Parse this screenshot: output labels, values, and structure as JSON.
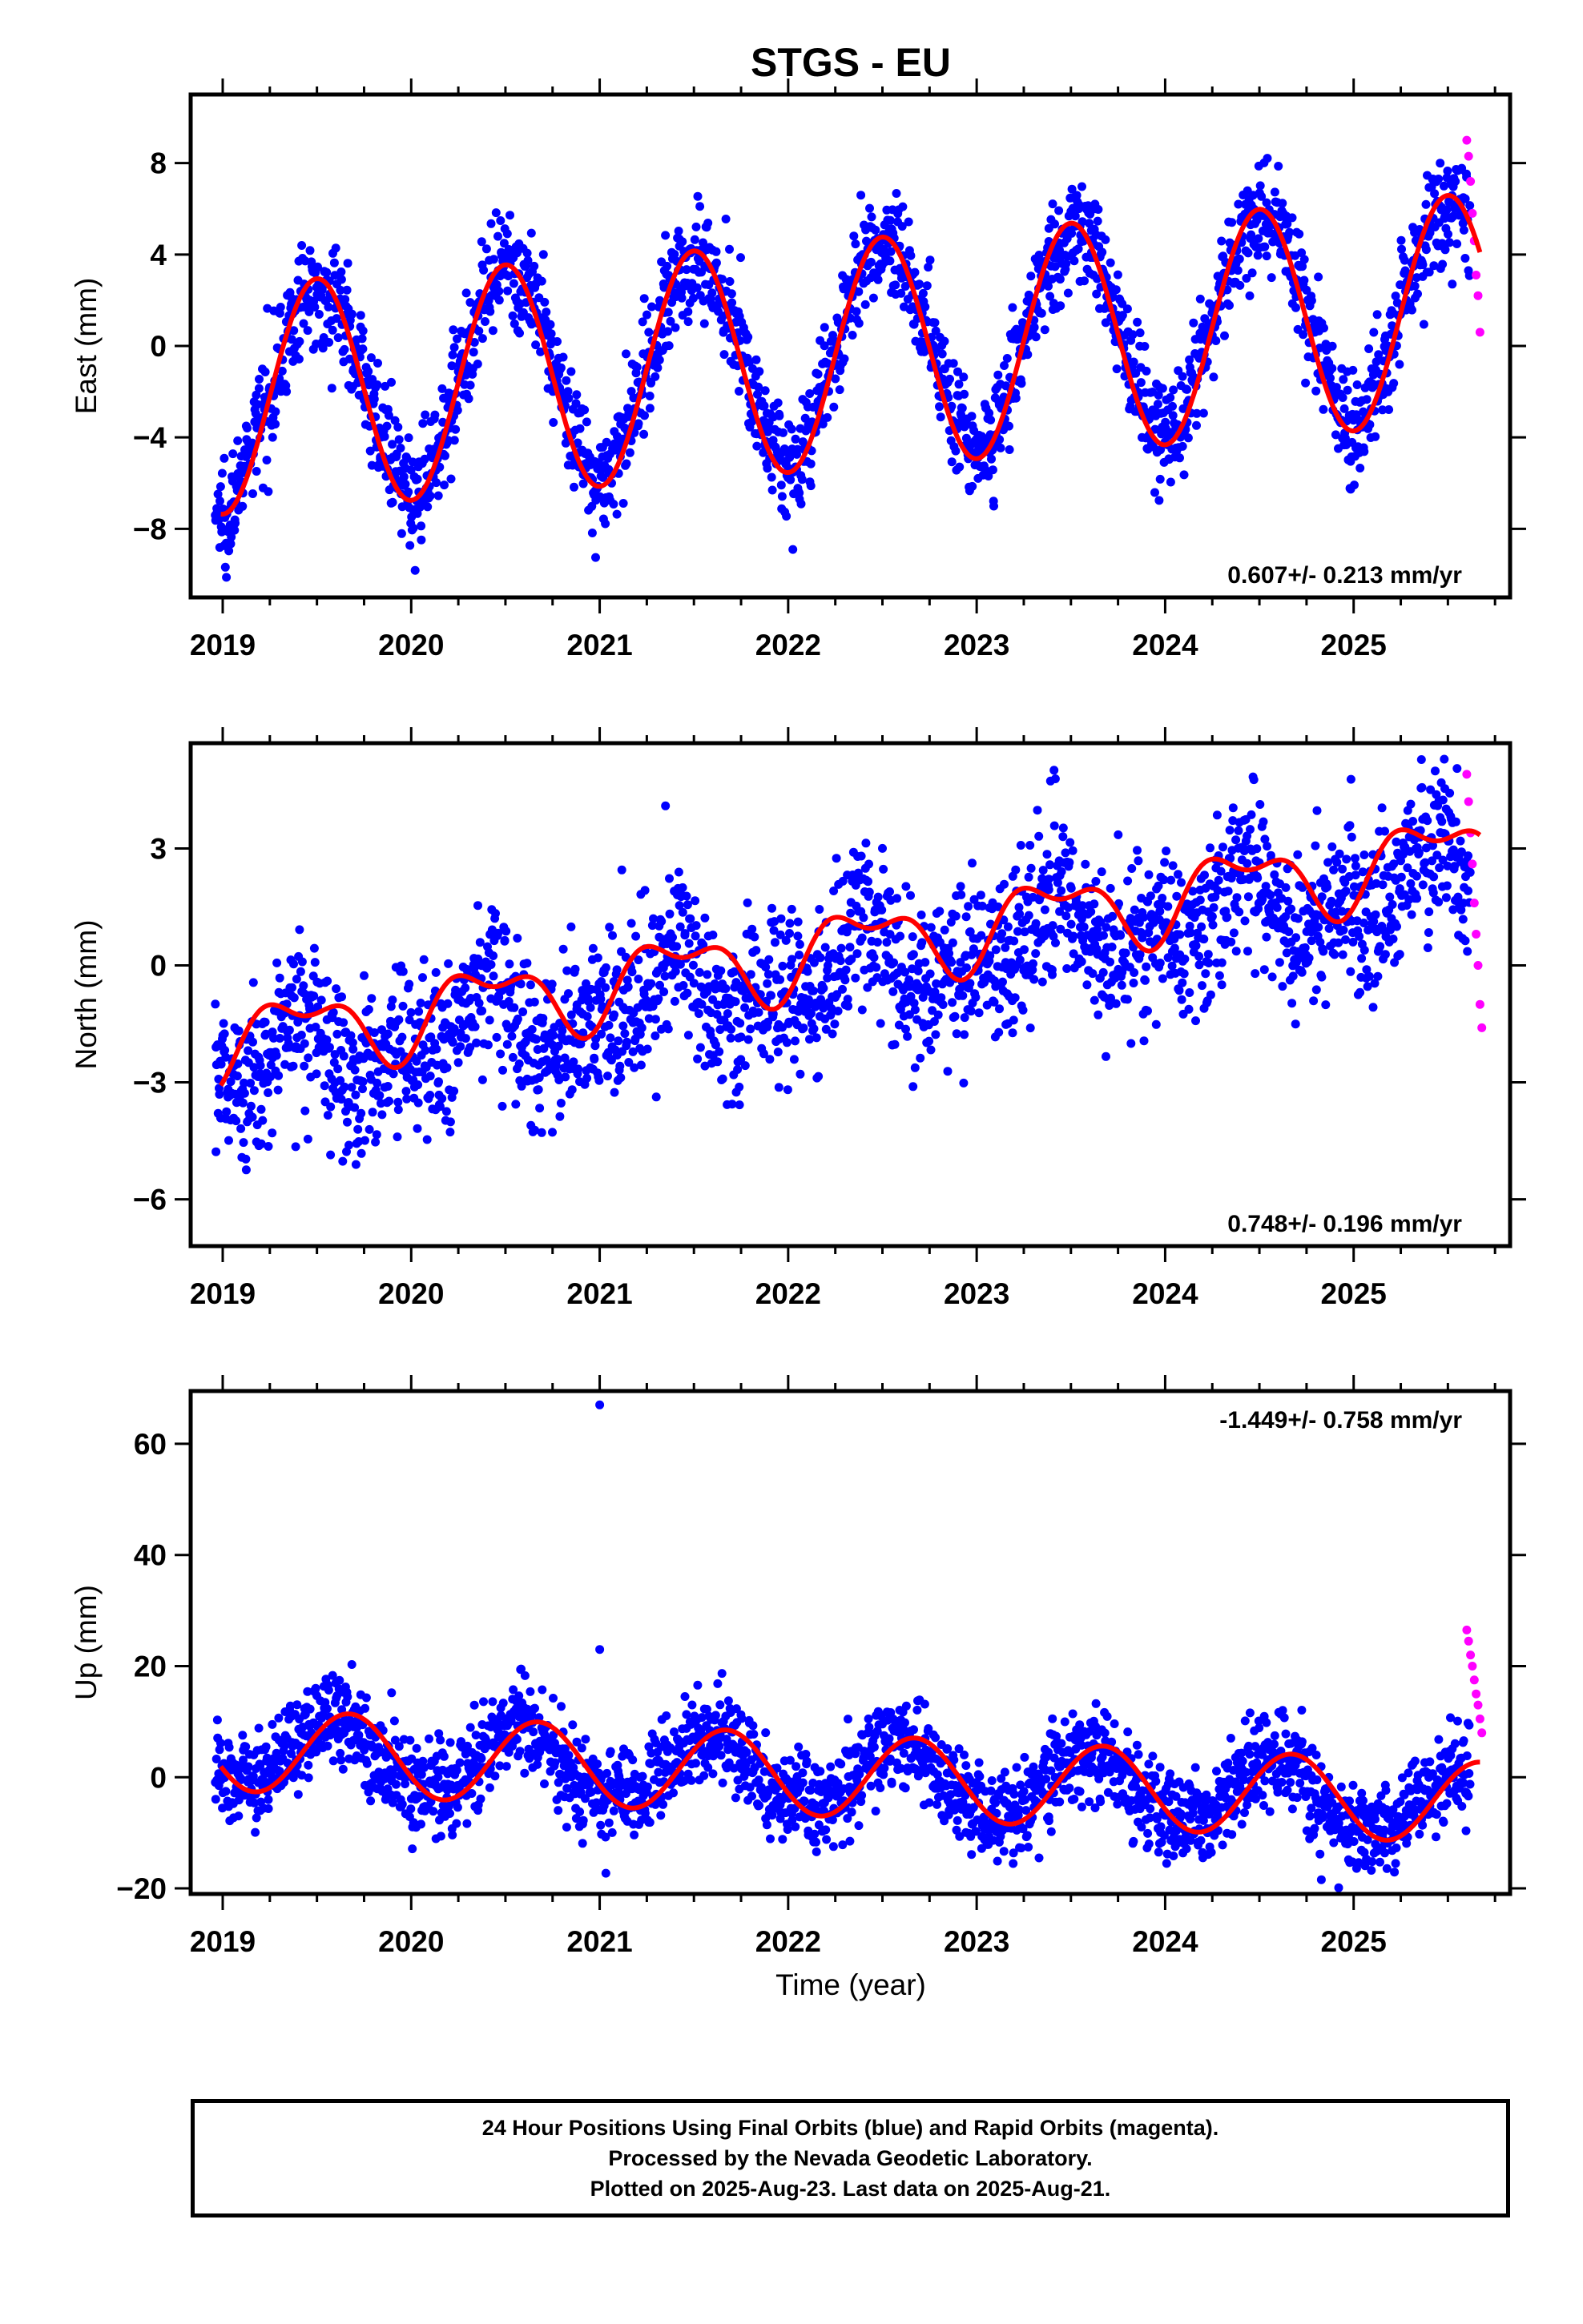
{
  "title": "STGS - EU",
  "colors": {
    "final": "#0000ff",
    "rapid": "#ff00ff",
    "model": "#ff0000",
    "frame": "#000000"
  },
  "caption": {
    "line1": "24 Hour Positions Using Final Orbits (blue) and Rapid Orbits (magenta).",
    "line2": "Processed by the Nevada Geodetic Laboratory.",
    "line3": "Plotted on 2025-Aug-23. Last data on 2025-Aug-21."
  },
  "chart_data": [
    {
      "type": "scatter",
      "title": "STGS - EU",
      "ylabel": "East (mm)",
      "xlabel": "",
      "xlim": [
        2018.83,
        2025.83
      ],
      "ylim": [
        -11,
        11
      ],
      "xticks": [
        2019,
        2020,
        2021,
        2022,
        2023,
        2024,
        2025
      ],
      "xtick_labels": [
        "2019",
        "2020",
        "2021",
        "2022",
        "2023",
        "2024",
        "2025"
      ],
      "yticks": [
        -8,
        -4,
        0,
        4,
        8
      ],
      "ytick_labels": [
        "−8",
        "−4",
        "0",
        "4",
        "8"
      ],
      "rate_text": "0.607+/- 0.213 mm/yr",
      "rate_position": "bottom-right",
      "grid": false,
      "model": {
        "rate": 0.607,
        "offset": -2.36,
        "t0": 2019,
        "annual_cos": -5.0,
        "annual_sin": 0.0,
        "semiannual_cos": 0,
        "semiannual_sin": 0
      },
      "series": [
        {
          "name": "Final Orbits",
          "color": "#0000ff",
          "noise": 1.2,
          "x": [
            2019.0,
            2019.1,
            2019.2,
            2019.3,
            2019.4,
            2019.5,
            2019.6,
            2019.7,
            2019.8,
            2019.9,
            2020.0,
            2020.1,
            2020.2,
            2020.3,
            2020.4,
            2020.5,
            2020.6,
            2020.7,
            2020.8,
            2020.9,
            2021.0,
            2021.1,
            2021.2,
            2021.3,
            2021.4,
            2021.5,
            2021.6,
            2021.7,
            2021.8,
            2021.9,
            2022.0,
            2022.1,
            2022.2,
            2022.3,
            2022.4,
            2022.5,
            2022.6,
            2022.7,
            2022.8,
            2022.9,
            2023.0,
            2023.1,
            2023.2,
            2023.3,
            2023.4,
            2023.5,
            2023.6,
            2023.7,
            2023.8,
            2023.9,
            2024.0,
            2024.1,
            2024.2,
            2024.3,
            2024.4,
            2024.5,
            2024.6,
            2024.7,
            2024.8,
            2024.9,
            2025.0,
            2025.1,
            2025.2,
            2025.3,
            2025.4,
            2025.5,
            2025.6
          ],
          "y": [
            -7.4,
            -5.9,
            -3.3,
            -0.6,
            1.6,
            2.6,
            2.1,
            0.1,
            -2.7,
            -5.3,
            -6.8,
            -5.4,
            -2.8,
            0.0,
            2.2,
            3.3,
            2.8,
            0.8,
            -2.0,
            -4.6,
            -6.1,
            -4.9,
            -2.3,
            0.6,
            2.8,
            3.9,
            3.4,
            1.4,
            -1.4,
            -4.0,
            -5.5,
            -4.3,
            -1.7,
            1.2,
            3.4,
            4.5,
            4.0,
            2.0,
            -0.8,
            -3.4,
            -4.8,
            -3.6,
            -1.0,
            1.8,
            4.0,
            5.1,
            4.6,
            2.6,
            -0.2,
            -2.8,
            -4.2,
            -3.0,
            -0.4,
            2.4,
            4.6,
            5.7,
            5.2,
            3.2,
            0.4,
            -2.2,
            -3.6,
            -2.4,
            0.2,
            3.0,
            5.2,
            6.3,
            5.8
          ]
        },
        {
          "name": "Rapid Orbits",
          "color": "#ff00ff",
          "x": [
            2025.6,
            2025.61,
            2025.62,
            2025.63,
            2025.64,
            2025.65,
            2025.66,
            2025.67
          ],
          "y": [
            9.0,
            8.3,
            7.2,
            5.8,
            4.6,
            3.1,
            2.2,
            0.6
          ]
        }
      ]
    },
    {
      "type": "scatter",
      "title": "",
      "ylabel": "North (mm)",
      "xlabel": "",
      "xlim": [
        2018.83,
        2025.83
      ],
      "ylim": [
        -7.2,
        5.7
      ],
      "xticks": [
        2019,
        2020,
        2021,
        2022,
        2023,
        2024,
        2025
      ],
      "xtick_labels": [
        "2019",
        "2020",
        "2021",
        "2022",
        "2023",
        "2024",
        "2025"
      ],
      "yticks": [
        -6,
        -3,
        0,
        3
      ],
      "ytick_labels": [
        "−6",
        "−3",
        "0",
        "3"
      ],
      "rate_text": "0.748+/- 0.196 mm/yr",
      "rate_position": "bottom-right",
      "grid": false,
      "model": {
        "rate": 0.748,
        "offset": -2.0,
        "t0": 2019,
        "annual_cos": -0.7,
        "annual_sin": 0.5,
        "semiannual_cos": -0.3,
        "semiannual_sin": 0.35
      },
      "series": [
        {
          "name": "Final Orbits",
          "color": "#0000ff",
          "noise": 1.05,
          "x": [
            2019.0,
            2019.1,
            2019.2,
            2019.3,
            2019.4,
            2019.5,
            2019.6,
            2019.7,
            2019.8,
            2019.9,
            2020.0,
            2020.1,
            2020.2,
            2020.3,
            2020.4,
            2020.5,
            2020.6,
            2020.7,
            2020.8,
            2020.9,
            2021.0,
            2021.1,
            2021.2,
            2021.3,
            2021.4,
            2021.5,
            2021.6,
            2021.7,
            2021.8,
            2021.9,
            2022.0,
            2022.1,
            2022.2,
            2022.3,
            2022.4,
            2022.5,
            2022.6,
            2022.7,
            2022.8,
            2022.9,
            2023.0,
            2023.1,
            2023.2,
            2023.3,
            2023.4,
            2023.5,
            2023.6,
            2023.7,
            2023.8,
            2023.9,
            2024.0,
            2024.1,
            2024.2,
            2024.3,
            2024.4,
            2024.5,
            2024.6,
            2024.7,
            2024.8,
            2024.9,
            2025.0,
            2025.1,
            2025.2,
            2025.3,
            2025.4,
            2025.5,
            2025.6
          ],
          "y": [
            -2.7,
            -3.0,
            -2.9,
            -1.8,
            -0.8,
            -1.2,
            -2.5,
            -3.0,
            -2.7,
            -2.2,
            -2.2,
            -2.4,
            -2.0,
            -1.0,
            -0.1,
            -0.5,
            -1.7,
            -2.3,
            -2.0,
            -1.4,
            -1.4,
            -1.6,
            -1.2,
            -0.3,
            0.7,
            0.3,
            -1.0,
            -1.5,
            -1.2,
            -0.6,
            -0.6,
            -0.9,
            -0.5,
            0.5,
            1.4,
            1.0,
            -0.2,
            -0.8,
            -0.5,
            0.1,
            0.1,
            -0.1,
            0.3,
            1.2,
            2.1,
            1.8,
            0.5,
            0.0,
            0.3,
            0.9,
            0.9,
            0.7,
            1.1,
            2.0,
            2.9,
            2.5,
            1.3,
            0.7,
            1.0,
            1.6,
            1.6,
            1.4,
            1.8,
            2.7,
            3.7,
            3.3,
            2.0
          ]
        },
        {
          "name": "Rapid Orbits",
          "color": "#ff00ff",
          "x": [
            2025.6,
            2025.61,
            2025.62,
            2025.63,
            2025.64,
            2025.65,
            2025.66,
            2025.67,
            2025.68
          ],
          "y": [
            4.9,
            4.2,
            3.4,
            2.6,
            1.6,
            0.8,
            0.0,
            -1.0,
            -1.6
          ]
        }
      ]
    },
    {
      "type": "scatter",
      "title": "",
      "ylabel": "Up (mm)",
      "xlabel": "Time (year)",
      "xlim": [
        2018.83,
        2025.83
      ],
      "ylim": [
        -21,
        69.5
      ],
      "xticks": [
        2019,
        2020,
        2021,
        2022,
        2023,
        2024,
        2025
      ],
      "xtick_labels": [
        "2019",
        "2020",
        "2021",
        "2022",
        "2023",
        "2024",
        "2025"
      ],
      "yticks": [
        -20,
        0,
        20,
        40,
        60
      ],
      "ytick_labels": [
        "−20",
        "0",
        "20",
        "40",
        "60"
      ],
      "rate_text": "-1.449+/- 0.758 mm/yr",
      "rate_position": "top-right",
      "grid": false,
      "model": {
        "rate": -1.449,
        "offset": 5.0,
        "t0": 2019,
        "annual_cos": -3.5,
        "annual_sin": -6.5,
        "semiannual_cos": 0,
        "semiannual_sin": 0
      },
      "series": [
        {
          "name": "Final Orbits",
          "color": "#0000ff",
          "noise": 4.2,
          "x": [
            2019.0,
            2019.1,
            2019.2,
            2019.3,
            2019.4,
            2019.5,
            2019.6,
            2019.7,
            2019.8,
            2019.9,
            2020.0,
            2020.1,
            2020.2,
            2020.3,
            2020.4,
            2020.5,
            2020.6,
            2020.7,
            2020.8,
            2020.9,
            2021.0,
            2021.1,
            2021.2,
            2021.3,
            2021.4,
            2021.5,
            2021.6,
            2021.7,
            2021.8,
            2021.9,
            2022.0,
            2022.1,
            2022.2,
            2022.3,
            2022.4,
            2022.5,
            2022.6,
            2022.7,
            2022.8,
            2022.9,
            2023.0,
            2023.1,
            2023.2,
            2023.3,
            2023.4,
            2023.5,
            2023.6,
            2023.7,
            2023.8,
            2023.9,
            2024.0,
            2024.1,
            2024.2,
            2024.3,
            2024.4,
            2024.5,
            2024.6,
            2024.7,
            2024.8,
            2024.9,
            2025.0,
            2025.1,
            2025.2,
            2025.3,
            2025.4,
            2025.5,
            2025.6
          ],
          "y": [
            1.5,
            -0.2,
            0.0,
            2.5,
            6.5,
            10.0,
            11.0,
            9.0,
            4.5,
            0.5,
            -1.5,
            -2.0,
            -1.5,
            1.0,
            5.0,
            8.5,
            9.5,
            7.5,
            3.0,
            -1.0,
            -3.0,
            -3.5,
            -3.0,
            -0.5,
            3.5,
            7.0,
            8.0,
            6.0,
            1.5,
            -2.5,
            -4.5,
            -5.0,
            -4.5,
            -2.0,
            2.0,
            5.5,
            6.5,
            4.5,
            0.0,
            -4.0,
            -6.0,
            -6.5,
            -6.0,
            -3.5,
            0.5,
            4.0,
            5.0,
            3.0,
            -1.5,
            -5.5,
            -7.5,
            -8.0,
            -7.5,
            -5.0,
            -1.0,
            2.5,
            3.5,
            1.5,
            -3.0,
            -7.0,
            -9.0,
            -9.5,
            -9.0,
            -6.5,
            -2.5,
            1.0,
            2.5
          ]
        },
        {
          "name": "Rapid Orbits",
          "color": "#ff00ff",
          "x": [
            2025.6,
            2025.61,
            2025.62,
            2025.63,
            2025.64,
            2025.65,
            2025.66,
            2025.67,
            2025.68
          ],
          "y": [
            26.5,
            24.5,
            22.0,
            20.0,
            17.5,
            15.0,
            13.0,
            10.5,
            8.0
          ]
        },
        {
          "name": "Outliers",
          "color": "#0000ff",
          "x": [
            2021.0,
            2021.0
          ],
          "y": [
            67.0,
            23.0
          ]
        }
      ]
    }
  ]
}
